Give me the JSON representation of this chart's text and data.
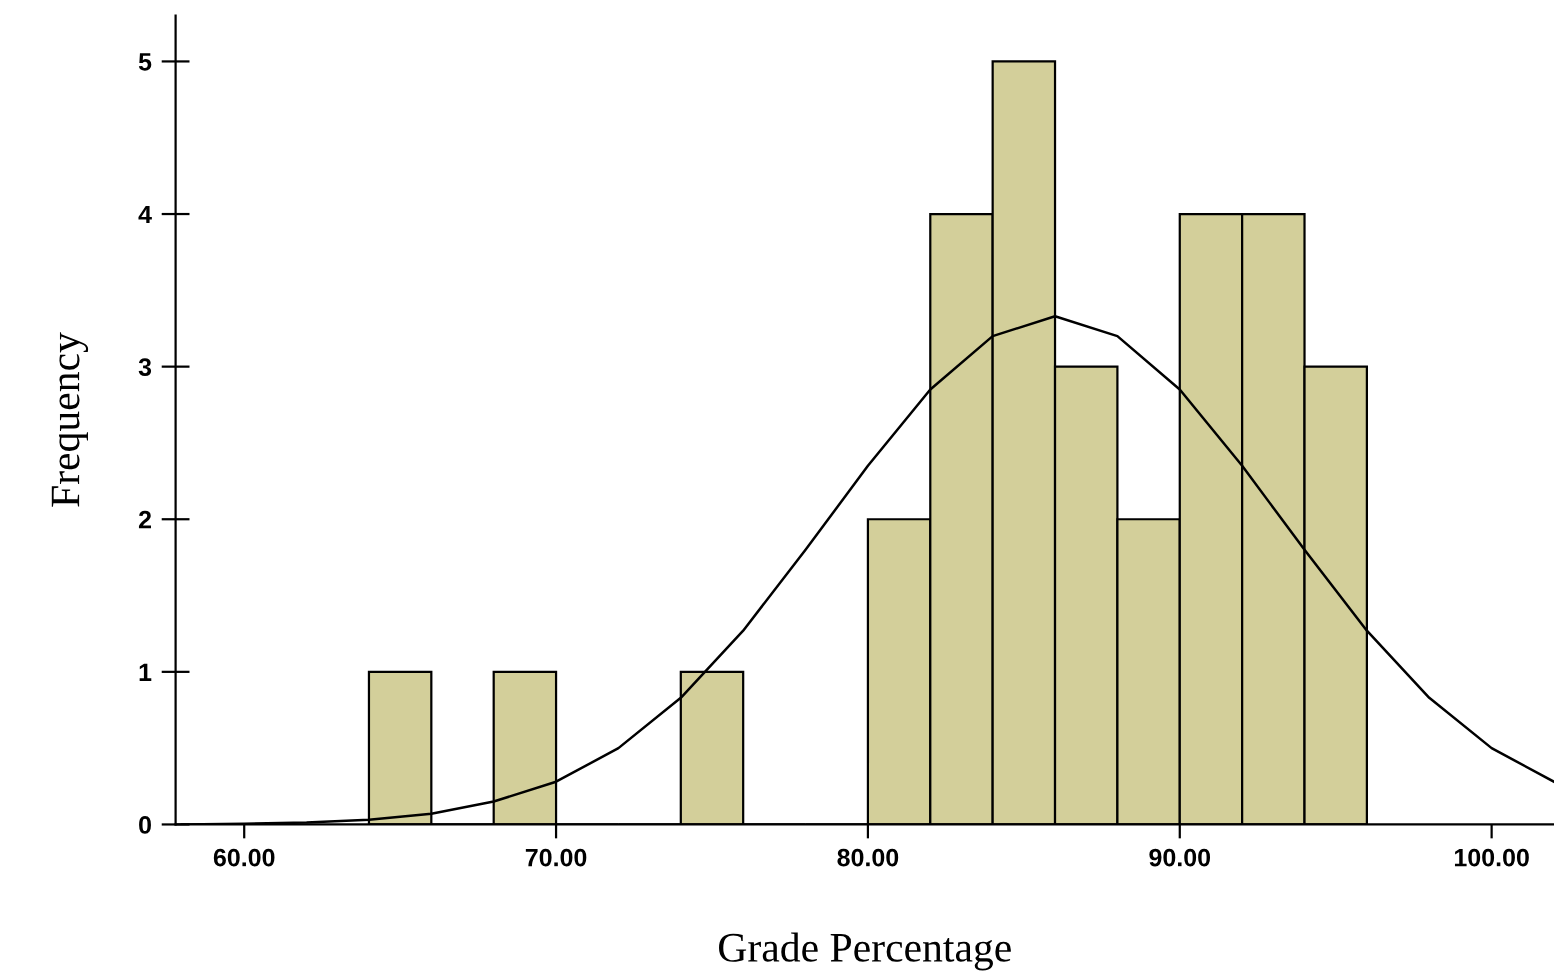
{
  "chart_data": {
    "type": "histogram",
    "xlabel": "Grade Percentage",
    "ylabel": "Frequency",
    "bins": [
      64,
      66,
      68,
      70,
      72,
      74,
      76,
      78,
      80,
      82,
      84,
      86,
      88,
      90,
      92,
      94,
      96
    ],
    "values": [
      1,
      0,
      1,
      0,
      0,
      1,
      0,
      0,
      2,
      4,
      5,
      3,
      2,
      4,
      4,
      3
    ],
    "color": "#d3cf9a",
    "series": [
      {
        "type": "line",
        "color": "#000000",
        "x": [
          58,
          60,
          62,
          64,
          66,
          68,
          70,
          72,
          74,
          76,
          78,
          80,
          82,
          84,
          86,
          88,
          90,
          92,
          94,
          96,
          98,
          100,
          102
        ],
        "values": [
          0.0,
          0.005,
          0.013,
          0.031,
          0.07,
          0.15,
          0.28,
          0.5,
          0.83,
          1.27,
          1.8,
          2.35,
          2.85,
          3.2,
          3.33,
          3.2,
          2.85,
          2.35,
          1.8,
          1.27,
          0.83,
          0.5,
          0.28
        ]
      }
    ],
    "xlim": [
      57.8,
      102
    ],
    "ylim": [
      0,
      5.3
    ],
    "xticks": [
      {
        "value": 60,
        "label": "60.00"
      },
      {
        "value": 70,
        "label": "70.00"
      },
      {
        "value": 80,
        "label": "80.00"
      },
      {
        "value": 90,
        "label": "90.00"
      },
      {
        "value": 100,
        "label": "100.00"
      }
    ],
    "yticks": [
      0,
      1,
      2,
      3,
      4,
      5
    ],
    "grid": false,
    "legend": false
  }
}
